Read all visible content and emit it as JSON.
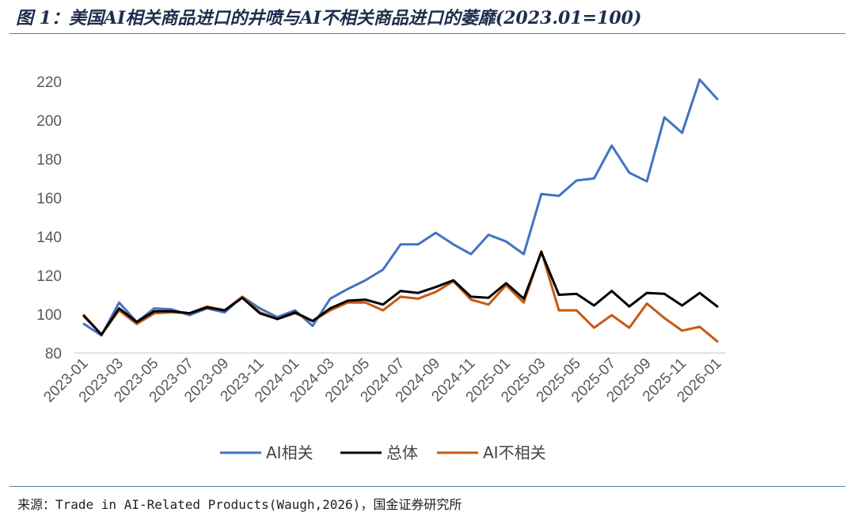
{
  "title": "图 1：美国AI相关商品进口的井喷与AI不相关商品进口的萎靡(2023.01=100)",
  "source": "来源：Trade in AI-Related Products(Waugh,2026)，国金证券研究所",
  "colors": {
    "ai": "#4472c4",
    "total": "#000000",
    "nonai": "#c55a11"
  },
  "chart_data": {
    "type": "line",
    "title": "图 1：美国AI相关商品进口的井喷与AI不相关商品进口的萎靡(2023.01=100)",
    "xlabel": "",
    "ylabel": "",
    "ylim": [
      80,
      220
    ],
    "yticks": [
      80,
      100,
      120,
      140,
      160,
      180,
      200,
      220
    ],
    "x_tick_labels": [
      "2023-01",
      "2023-03",
      "2023-05",
      "2023-07",
      "2023-09",
      "2023-11",
      "2024-01",
      "2024-03",
      "2024-05",
      "2024-07",
      "2024-09",
      "2024-11",
      "2025-01",
      "2025-03",
      "2025-05",
      "2025-07",
      "2025-09",
      "2025-11",
      "2026-01"
    ],
    "x": [
      "2023-01",
      "2023-02",
      "2023-03",
      "2023-04",
      "2023-05",
      "2023-06",
      "2023-07",
      "2023-08",
      "2023-09",
      "2023-10",
      "2023-11",
      "2023-12",
      "2024-01",
      "2024-02",
      "2024-03",
      "2024-04",
      "2024-05",
      "2024-06",
      "2024-07",
      "2024-08",
      "2024-09",
      "2024-10",
      "2024-11",
      "2024-12",
      "2025-01",
      "2025-02",
      "2025-03",
      "2025-04",
      "2025-05",
      "2025-06",
      "2025-07",
      "2025-08",
      "2025-09",
      "2025-10",
      "2025-11",
      "2025-12",
      "2026-01"
    ],
    "legend_position": "bottom",
    "grid": false,
    "series": [
      {
        "name": "AI相关",
        "color": "#4472c4",
        "values": [
          95,
          89,
          106,
          96,
          103,
          102.5,
          99.5,
          103,
          101,
          109,
          103,
          98.5,
          102,
          94,
          108,
          113,
          117.5,
          123,
          136,
          136,
          142,
          136,
          131,
          141,
          137.5,
          131,
          162,
          161,
          169,
          170,
          187,
          173,
          168.5,
          201.5,
          193.5,
          221,
          211
        ]
      },
      {
        "name": "总体",
        "color": "#000000",
        "values": [
          99,
          89.5,
          103,
          96,
          101.5,
          101.5,
          100.5,
          103.5,
          102,
          108.5,
          100.5,
          97.5,
          101,
          96.5,
          103,
          107,
          107.5,
          105,
          112,
          111,
          114,
          117.5,
          109,
          108.5,
          116,
          108,
          132,
          110,
          110.5,
          104.5,
          112,
          104,
          111,
          110.5,
          104.5,
          111,
          104
        ]
      },
      {
        "name": "AI不相关",
        "color": "#c55a11",
        "values": [
          99.5,
          89.5,
          102,
          95,
          100.5,
          101,
          100.5,
          104,
          102,
          109,
          101,
          97.5,
          100.5,
          96.5,
          102,
          106,
          106,
          102,
          109,
          108,
          111.5,
          117,
          107.5,
          105,
          115,
          106,
          132.5,
          102,
          102,
          93,
          99.5,
          93,
          105.5,
          98,
          91.5,
          93.5,
          86
        ]
      }
    ]
  }
}
